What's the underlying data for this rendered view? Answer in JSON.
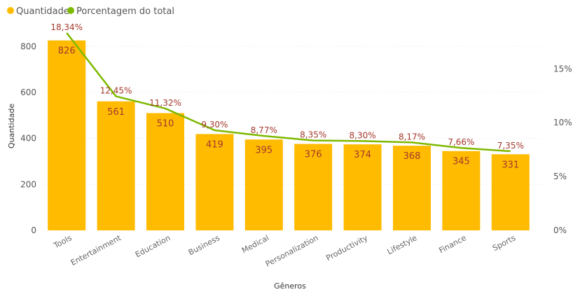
{
  "chart_data": {
    "type": "bar",
    "categories": [
      "Tools",
      "Entertainment",
      "Education",
      "Business",
      "Medical",
      "Personalization",
      "Productivity",
      "Lifestyle",
      "Finance",
      "Sports"
    ],
    "series": [
      {
        "name": "Quantidade",
        "type": "bar",
        "axis": "left",
        "color": "#FFBB00",
        "values": [
          826,
          561,
          510,
          419,
          395,
          376,
          374,
          368,
          345,
          331
        ],
        "labels": [
          "826",
          "561",
          "510",
          "419",
          "395",
          "376",
          "374",
          "368",
          "345",
          "331"
        ]
      },
      {
        "name": "Porcentagem do total",
        "type": "line",
        "axis": "right",
        "color": "#7DB900",
        "values": [
          18.34,
          12.45,
          11.32,
          9.3,
          8.77,
          8.35,
          8.3,
          8.17,
          7.66,
          7.35
        ],
        "labels": [
          "18,34%",
          "12,45%",
          "11,32%",
          "9,30%",
          "8,77%",
          "8,35%",
          "8,30%",
          "8,17%",
          "7,66%",
          "7,35%"
        ]
      }
    ],
    "xlabel": "Gêneros",
    "ylabel": "Quantidade",
    "ylim": [
      0,
      880
    ],
    "y2lim": [
      0,
      18.34
    ],
    "yticks": [
      0,
      200,
      400,
      600,
      800
    ],
    "yticklabels": [
      "0",
      "200",
      "400",
      "600",
      "800"
    ],
    "y2ticks": [
      0,
      5,
      10,
      15
    ],
    "y2ticklabels": [
      "0%",
      "5%",
      "10%",
      "15%"
    ],
    "legend": "top-left",
    "grid": true
  }
}
